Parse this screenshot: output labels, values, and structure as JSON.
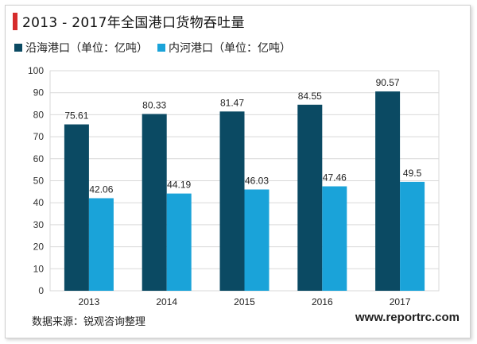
{
  "title": "2013 -  2017年全国港口货物吞吐量",
  "source": "数据来源：锐观咨询整理",
  "website": "www.reportrc.com",
  "colors": {
    "series1": "#0b4a63",
    "series2": "#1aa3d9",
    "accent": "#d62c2c",
    "grid": "#d9d9d9"
  },
  "chart_data": {
    "type": "bar",
    "title": "2013 -  2017年全国港口货物吞吐量",
    "xlabel": "",
    "ylabel": "",
    "categories": [
      "2013",
      "2014",
      "2015",
      "2016",
      "2017"
    ],
    "series": [
      {
        "name": "沿海港口（单位：亿吨）",
        "values": [
          75.61,
          80.33,
          81.47,
          84.55,
          90.57
        ]
      },
      {
        "name": "内河港口（单位：亿吨）",
        "values": [
          42.06,
          44.19,
          46.03,
          47.46,
          49.5
        ]
      }
    ],
    "value_labels": [
      [
        "75.61",
        "80.33",
        "81.47",
        "84.55",
        "90.57"
      ],
      [
        "42.06",
        "44.19",
        "46.03",
        "47.46",
        "49.5"
      ]
    ],
    "ylim": [
      0,
      100
    ],
    "yticks": [
      "0",
      "10",
      "20",
      "30",
      "40",
      "50",
      "60",
      "70",
      "80",
      "90",
      "100"
    ],
    "grid": true,
    "legend_position": "top-left"
  }
}
